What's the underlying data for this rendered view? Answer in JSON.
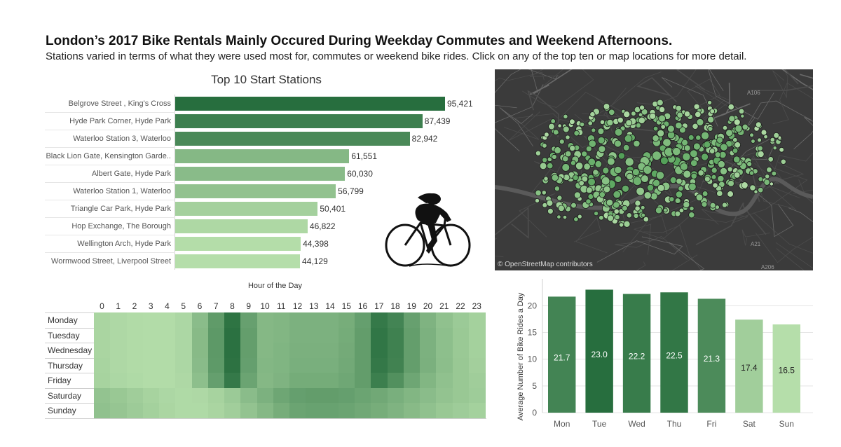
{
  "header": {
    "title": "London’s 2017 Bike Rentals Mainly Occured During Weekday Commutes and Weekend Afternoons.",
    "subtitle": "Stations varied in terms of what they were used most for, commutes or weekend bike rides. Click on any of the top ten or map locations for more detail."
  },
  "map": {
    "credit": "© OpenStreetMap contributors",
    "road_labels": [
      "A106",
      "A21",
      "A206"
    ]
  },
  "colors": {
    "dark_green": "#276e3e",
    "mid_green": "#4f9e55",
    "light_green": "#b5deaa",
    "map_bg": "#3b3b3b"
  },
  "chart_data": [
    {
      "type": "bar",
      "orientation": "horizontal",
      "title": "Top 10 Start Stations",
      "categories": [
        "Belgrove Street , King's Cross",
        "Hyde Park Corner, Hyde Park",
        "Waterloo Station 3, Waterloo",
        "Black Lion Gate, Kensington Garde..",
        "Albert Gate, Hyde Park",
        "Waterloo Station 1, Waterloo",
        "Triangle Car Park, Hyde Park",
        "Hop Exchange, The Borough",
        "Wellington Arch, Hyde Park",
        "Wormwood Street, Liverpool Street"
      ],
      "values": [
        95421,
        87439,
        82942,
        61551,
        60030,
        56799,
        50401,
        46822,
        44398,
        44129
      ],
      "value_labels": [
        "95,421",
        "87,439",
        "82,942",
        "61,551",
        "60,030",
        "56,799",
        "50,401",
        "46,822",
        "44,398",
        "44,129"
      ],
      "xlim": [
        0,
        100000
      ]
    },
    {
      "type": "heatmap",
      "title": "Hour of the Day",
      "x": [
        "0",
        "1",
        "2",
        "3",
        "4",
        "5",
        "6",
        "7",
        "8",
        "9",
        "10",
        "11",
        "12",
        "13",
        "14",
        "15",
        "16",
        "17",
        "18",
        "19",
        "20",
        "21",
        "22",
        "23"
      ],
      "y": [
        "Monday",
        "Tuesday",
        "Wednesday",
        "Thursday",
        "Friday",
        "Saturday",
        "Sunday"
      ],
      "values": [
        [
          0.08,
          0.05,
          0.03,
          0.02,
          0.02,
          0.06,
          0.3,
          0.6,
          0.95,
          0.55,
          0.34,
          0.36,
          0.4,
          0.4,
          0.4,
          0.44,
          0.56,
          0.9,
          0.8,
          0.55,
          0.38,
          0.26,
          0.18,
          0.12
        ],
        [
          0.08,
          0.05,
          0.03,
          0.02,
          0.02,
          0.06,
          0.32,
          0.62,
          0.97,
          0.57,
          0.34,
          0.36,
          0.4,
          0.4,
          0.4,
          0.45,
          0.58,
          0.93,
          0.83,
          0.57,
          0.4,
          0.28,
          0.19,
          0.12
        ],
        [
          0.08,
          0.05,
          0.03,
          0.02,
          0.02,
          0.06,
          0.32,
          0.62,
          0.97,
          0.57,
          0.34,
          0.37,
          0.41,
          0.41,
          0.41,
          0.46,
          0.58,
          0.93,
          0.83,
          0.57,
          0.4,
          0.28,
          0.19,
          0.12
        ],
        [
          0.09,
          0.05,
          0.03,
          0.02,
          0.02,
          0.06,
          0.31,
          0.61,
          0.96,
          0.56,
          0.35,
          0.37,
          0.42,
          0.42,
          0.42,
          0.47,
          0.58,
          0.91,
          0.82,
          0.57,
          0.41,
          0.29,
          0.2,
          0.13
        ],
        [
          0.1,
          0.06,
          0.04,
          0.02,
          0.02,
          0.05,
          0.28,
          0.56,
          0.9,
          0.52,
          0.34,
          0.38,
          0.45,
          0.45,
          0.45,
          0.49,
          0.58,
          0.85,
          0.7,
          0.5,
          0.36,
          0.26,
          0.2,
          0.15
        ],
        [
          0.24,
          0.2,
          0.15,
          0.1,
          0.06,
          0.04,
          0.05,
          0.1,
          0.18,
          0.3,
          0.4,
          0.5,
          0.56,
          0.58,
          0.58,
          0.56,
          0.52,
          0.48,
          0.42,
          0.36,
          0.3,
          0.24,
          0.2,
          0.16
        ],
        [
          0.26,
          0.22,
          0.17,
          0.12,
          0.07,
          0.04,
          0.04,
          0.08,
          0.14,
          0.24,
          0.34,
          0.44,
          0.52,
          0.54,
          0.54,
          0.52,
          0.48,
          0.44,
          0.38,
          0.32,
          0.26,
          0.2,
          0.16,
          0.12
        ]
      ],
      "value_scale": "relative intensity 0-1"
    },
    {
      "type": "bar",
      "orientation": "vertical",
      "title": "",
      "xlabel": "",
      "ylabel": "Average Number of Bike Rides a Day",
      "categories": [
        "Mon",
        "Tue",
        "Wed",
        "Thu",
        "Fri",
        "Sat",
        "Sun"
      ],
      "values": [
        21.7,
        23.0,
        22.2,
        22.5,
        21.3,
        17.4,
        16.5
      ],
      "value_labels": [
        "21.7",
        "23.0",
        "22.2",
        "22.5",
        "21.3",
        "17.4",
        "16.5"
      ],
      "yticks": [
        "0",
        "5",
        "10",
        "15",
        "20"
      ],
      "ylim": [
        0,
        24.5
      ],
      "grid": true
    }
  ]
}
